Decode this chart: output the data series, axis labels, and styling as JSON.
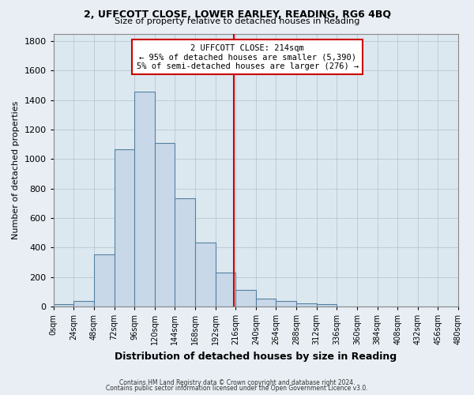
{
  "title1": "2, UFFCOTT CLOSE, LOWER EARLEY, READING, RG6 4BQ",
  "title2": "Size of property relative to detached houses in Reading",
  "xlabel": "Distribution of detached houses by size in Reading",
  "ylabel": "Number of detached properties",
  "bar_edges": [
    0,
    24,
    48,
    72,
    96,
    120,
    144,
    168,
    192,
    216,
    240,
    264,
    288,
    312,
    336,
    360,
    384,
    408,
    432,
    456,
    480
  ],
  "bar_heights": [
    15,
    35,
    355,
    1065,
    1455,
    1110,
    735,
    435,
    230,
    110,
    55,
    35,
    20,
    15,
    0,
    0,
    0,
    0,
    0,
    0
  ],
  "bar_color": "#c8d8e8",
  "bar_edge_color": "#5580a0",
  "vline_x": 214,
  "vline_color": "#cc0000",
  "annotation_text": "2 UFFCOTT CLOSE: 214sqm\n← 95% of detached houses are smaller (5,390)\n5% of semi-detached houses are larger (276) →",
  "annotation_box_edge_color": "#cc0000",
  "ylim": [
    0,
    1850
  ],
  "yticks": [
    0,
    200,
    400,
    600,
    800,
    1000,
    1200,
    1400,
    1600,
    1800
  ],
  "xtick_labels": [
    "0sqm",
    "24sqm",
    "48sqm",
    "72sqm",
    "96sqm",
    "120sqm",
    "144sqm",
    "168sqm",
    "192sqm",
    "216sqm",
    "240sqm",
    "264sqm",
    "288sqm",
    "312sqm",
    "336sqm",
    "360sqm",
    "384sqm",
    "408sqm",
    "432sqm",
    "456sqm",
    "480sqm"
  ],
  "footnote1": "Contains HM Land Registry data © Crown copyright and database right 2024.",
  "footnote2": "Contains public sector information licensed under the Open Government Licence v3.0.",
  "bg_color": "#e8eef4",
  "plot_bg_color": "#dce8f0"
}
